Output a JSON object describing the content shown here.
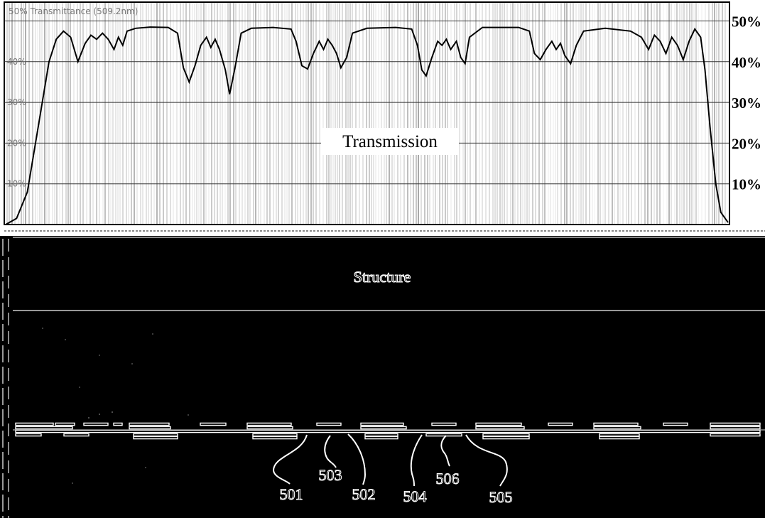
{
  "chart_data": {
    "type": "line",
    "title": "Transmission",
    "faint_caption": "50% Transmittance (509.2nm)",
    "faint_ticks": [
      "40%",
      "30%",
      "20%",
      "10%"
    ],
    "y_ticks": [
      "50%",
      "40%",
      "30%",
      "20%",
      "10%"
    ],
    "ylim": [
      0,
      52
    ],
    "x_domain": [
      0,
      1000
    ],
    "grid": true,
    "series": [
      {
        "values": [
          [
            0,
            0
          ],
          [
            15,
            1.5
          ],
          [
            30,
            8
          ],
          [
            45,
            24
          ],
          [
            60,
            40
          ],
          [
            70,
            45.5
          ],
          [
            80,
            47.5
          ],
          [
            90,
            46
          ],
          [
            100,
            40
          ],
          [
            110,
            44.5
          ],
          [
            118,
            46.5
          ],
          [
            126,
            45.5
          ],
          [
            134,
            47
          ],
          [
            142,
            45.5
          ],
          [
            150,
            43
          ],
          [
            156,
            46
          ],
          [
            162,
            44
          ],
          [
            168,
            47.5
          ],
          [
            180,
            48.2
          ],
          [
            200,
            48.5
          ],
          [
            225,
            48.4
          ],
          [
            238,
            47
          ],
          [
            246,
            38.5
          ],
          [
            254,
            35
          ],
          [
            262,
            39
          ],
          [
            270,
            44
          ],
          [
            278,
            46
          ],
          [
            284,
            43.5
          ],
          [
            290,
            45.5
          ],
          [
            296,
            43
          ],
          [
            304,
            38
          ],
          [
            310,
            32
          ],
          [
            318,
            39
          ],
          [
            326,
            47
          ],
          [
            340,
            48.2
          ],
          [
            370,
            48.4
          ],
          [
            395,
            48
          ],
          [
            402,
            45
          ],
          [
            410,
            39
          ],
          [
            418,
            38.2
          ],
          [
            426,
            42
          ],
          [
            434,
            45
          ],
          [
            440,
            43
          ],
          [
            446,
            45.5
          ],
          [
            452,
            44
          ],
          [
            458,
            42
          ],
          [
            464,
            38.5
          ],
          [
            472,
            41
          ],
          [
            480,
            47
          ],
          [
            500,
            48.2
          ],
          [
            540,
            48.4
          ],
          [
            562,
            48
          ],
          [
            570,
            44
          ],
          [
            576,
            38
          ],
          [
            582,
            36.5
          ],
          [
            590,
            41
          ],
          [
            598,
            45
          ],
          [
            604,
            44
          ],
          [
            610,
            45.5
          ],
          [
            616,
            43
          ],
          [
            624,
            45
          ],
          [
            630,
            41
          ],
          [
            636,
            39.5
          ],
          [
            642,
            46
          ],
          [
            660,
            48.4
          ],
          [
            710,
            48.4
          ],
          [
            725,
            47.5
          ],
          [
            732,
            42
          ],
          [
            740,
            40.5
          ],
          [
            748,
            43
          ],
          [
            756,
            45
          ],
          [
            762,
            43
          ],
          [
            768,
            44.5
          ],
          [
            774,
            41.5
          ],
          [
            782,
            39.5
          ],
          [
            790,
            44
          ],
          [
            800,
            47.5
          ],
          [
            830,
            48.2
          ],
          [
            865,
            47.5
          ],
          [
            880,
            46
          ],
          [
            890,
            43
          ],
          [
            898,
            46.5
          ],
          [
            906,
            45
          ],
          [
            914,
            42
          ],
          [
            922,
            46
          ],
          [
            930,
            44
          ],
          [
            938,
            40.5
          ],
          [
            946,
            45
          ],
          [
            954,
            48
          ],
          [
            962,
            46
          ],
          [
            968,
            38
          ],
          [
            975,
            24
          ],
          [
            983,
            10
          ],
          [
            990,
            3
          ],
          [
            1000,
            0.5
          ]
        ]
      }
    ]
  },
  "structure": {
    "title": "Structure",
    "callouts": [
      "501",
      "503",
      "502",
      "504",
      "506",
      "505"
    ]
  }
}
